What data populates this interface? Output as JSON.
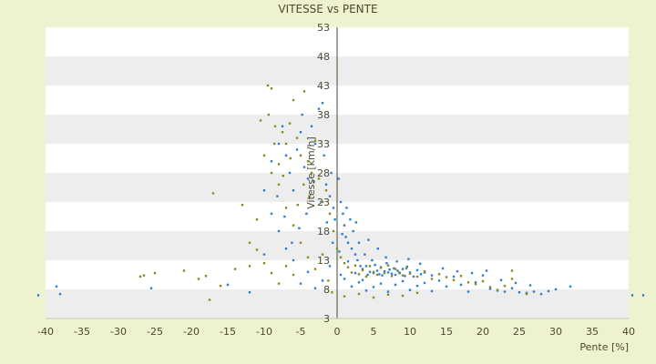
{
  "chart_data": {
    "type": "scatter",
    "title": "VITESSE vs PENTE",
    "xlabel": "Pente [%]",
    "ylabel": "Vitesse [km/h]",
    "xlim": [
      -40,
      40
    ],
    "ylim": [
      3,
      53
    ],
    "x_ticks": [
      -40,
      -35,
      -30,
      -25,
      -20,
      -15,
      -10,
      -5,
      0,
      5,
      10,
      15,
      20,
      25,
      30,
      35,
      40
    ],
    "y_ticks": [
      3,
      8,
      13,
      18,
      23,
      28,
      33,
      38,
      43,
      48,
      53
    ],
    "grid": "horizontal bands",
    "colors": {
      "background": "#eef2cf",
      "band_light": "#ffffff",
      "band_dark": "#ededed",
      "axis": "#4a4a30",
      "series_blue": "#2f7fd0",
      "series_olive": "#8a8a1e"
    },
    "series": [
      {
        "color": "#2f7fd0",
        "points": [
          [
            -41,
            7
          ],
          [
            -38.5,
            8.5
          ],
          [
            -38,
            7.2
          ],
          [
            -25.5,
            8.2
          ],
          [
            -15,
            8.8
          ],
          [
            -12,
            7.5
          ],
          [
            -10,
            14
          ],
          [
            -9,
            30
          ],
          [
            -8,
            33
          ],
          [
            -7.5,
            36
          ],
          [
            -7,
            31
          ],
          [
            -6.5,
            28
          ],
          [
            -6,
            25
          ],
          [
            -5.5,
            32
          ],
          [
            -5,
            35
          ],
          [
            -4.8,
            38
          ],
          [
            -4.5,
            29
          ],
          [
            -4,
            27
          ],
          [
            -3.5,
            36
          ],
          [
            -3,
            33
          ],
          [
            -2.5,
            39
          ],
          [
            -2,
            40
          ],
          [
            -1.8,
            31
          ],
          [
            -1.5,
            26
          ],
          [
            -1,
            24
          ],
          [
            -0.8,
            28
          ],
          [
            -0.5,
            22
          ],
          [
            -0.3,
            20
          ],
          [
            0.2,
            27
          ],
          [
            0.5,
            23
          ],
          [
            0.8,
            21
          ],
          [
            1,
            19
          ],
          [
            1.2,
            17
          ],
          [
            1.5,
            16
          ],
          [
            1.8,
            20
          ],
          [
            2,
            15
          ],
          [
            2.2,
            18
          ],
          [
            2.5,
            14
          ],
          [
            2.8,
            13
          ],
          [
            3,
            16
          ],
          [
            3.2,
            12
          ],
          [
            3.5,
            11.5
          ],
          [
            3.8,
            14
          ],
          [
            4,
            12
          ],
          [
            4.2,
            10.5
          ],
          [
            4.5,
            11
          ],
          [
            4.8,
            13
          ],
          [
            5,
            10.8
          ],
          [
            5.2,
            12.2
          ],
          [
            5.5,
            11.2
          ],
          [
            5.8,
            10.6
          ],
          [
            6,
            11.8
          ],
          [
            6.2,
            10.4
          ],
          [
            6.5,
            11.1
          ],
          [
            6.8,
            12.5
          ],
          [
            7,
            10.9
          ],
          [
            7.2,
            11.4
          ],
          [
            7.5,
            10.7
          ],
          [
            7.8,
            11.6
          ],
          [
            8,
            10.5
          ],
          [
            8.3,
            11.2
          ],
          [
            8.6,
            10.8
          ],
          [
            9,
            11.5
          ],
          [
            9.3,
            10.3
          ],
          [
            9.6,
            11.9
          ],
          [
            10,
            10.9
          ],
          [
            10.5,
            10.2
          ],
          [
            11,
            11.3
          ],
          [
            11.5,
            10.6
          ],
          [
            12,
            10.9
          ],
          [
            13,
            10.4
          ],
          [
            14,
            9.5
          ],
          [
            15,
            8.5
          ],
          [
            16,
            10.2
          ],
          [
            17,
            8.8
          ],
          [
            18,
            7.6
          ],
          [
            19,
            9.2
          ],
          [
            20,
            10.4
          ],
          [
            21,
            8.1
          ],
          [
            22,
            7.8
          ],
          [
            23,
            7.6
          ],
          [
            24,
            8.2
          ],
          [
            25,
            7.5
          ],
          [
            26,
            7.4
          ],
          [
            27,
            7.6
          ],
          [
            28,
            7.2
          ],
          [
            29,
            7.7
          ],
          [
            30,
            8.0
          ],
          [
            32,
            8.5
          ],
          [
            2,
            8.5
          ],
          [
            3,
            9.2
          ],
          [
            4,
            7.8
          ],
          [
            5,
            8.4
          ],
          [
            6,
            9.0
          ],
          [
            7,
            7.6
          ],
          [
            8,
            8.8
          ],
          [
            9,
            9.4
          ],
          [
            10,
            7.9
          ],
          [
            11,
            8.6
          ],
          [
            12,
            9.1
          ],
          [
            13,
            7.7
          ],
          [
            1,
            9.8
          ],
          [
            0.5,
            10.5
          ],
          [
            1.5,
            12.8
          ],
          [
            2.5,
            10.8
          ],
          [
            3.5,
            9.6
          ],
          [
            -1,
            12
          ],
          [
            -2,
            9.5
          ],
          [
            -3,
            8.2
          ],
          [
            -4,
            11
          ],
          [
            -5,
            9
          ],
          [
            -6,
            13
          ],
          [
            -7,
            15
          ],
          [
            -8,
            18
          ],
          [
            -9,
            21
          ],
          [
            -10,
            25
          ],
          [
            40.5,
            7
          ],
          [
            42,
            7
          ],
          [
            0.3,
            14.5
          ],
          [
            0.7,
            17.5
          ],
          [
            1.3,
            22
          ],
          [
            2.6,
            19.5
          ],
          [
            4.3,
            16.5
          ],
          [
            5.6,
            15
          ],
          [
            6.7,
            13.5
          ],
          [
            8.2,
            12.8
          ],
          [
            9.8,
            13.2
          ],
          [
            11.4,
            12.4
          ],
          [
            14.5,
            11.6
          ],
          [
            16.5,
            11.1
          ],
          [
            18.5,
            10.8
          ],
          [
            20.5,
            11.2
          ],
          [
            22.5,
            9.6
          ],
          [
            24.5,
            9.1
          ],
          [
            26.5,
            8.7
          ],
          [
            -0.6,
            16
          ],
          [
            -1.4,
            19.5
          ],
          [
            -2.2,
            23
          ],
          [
            -3.2,
            26.5
          ],
          [
            -4.2,
            21
          ],
          [
            -5.2,
            18.5
          ],
          [
            -6.2,
            16
          ],
          [
            -7.2,
            20.5
          ],
          [
            -8.2,
            24
          ]
        ]
      },
      {
        "color": "#8a8a1e",
        "points": [
          [
            -27,
            10.2
          ],
          [
            -26.5,
            10.4
          ],
          [
            -25,
            10.8
          ],
          [
            -21,
            11.2
          ],
          [
            -19,
            9.8
          ],
          [
            -18,
            10.3
          ],
          [
            -17.5,
            6.2
          ],
          [
            -17,
            24.5
          ],
          [
            -16,
            8.6
          ],
          [
            -14,
            11.5
          ],
          [
            -13,
            22.5
          ],
          [
            -12,
            12
          ],
          [
            -11,
            14.8
          ],
          [
            -10.5,
            37
          ],
          [
            -9.5,
            43
          ],
          [
            -9,
            42.5
          ],
          [
            -8.5,
            36
          ],
          [
            -8,
            29.5
          ],
          [
            -7.5,
            35
          ],
          [
            -7,
            33
          ],
          [
            -6.5,
            36.5
          ],
          [
            -6,
            40.5
          ],
          [
            -5.5,
            34
          ],
          [
            -5,
            31
          ],
          [
            -4.5,
            42
          ],
          [
            -4,
            30
          ],
          [
            -3.5,
            28
          ],
          [
            -3,
            33.5
          ],
          [
            -2.5,
            27
          ],
          [
            -2,
            23
          ],
          [
            -1.5,
            25
          ],
          [
            -1,
            21
          ],
          [
            -0.5,
            18
          ],
          [
            0,
            15
          ],
          [
            0.5,
            13.5
          ],
          [
            1,
            12.5
          ],
          [
            1.5,
            11.8
          ],
          [
            2,
            10.9
          ],
          [
            2.5,
            12.1
          ],
          [
            3,
            10.6
          ],
          [
            3.5,
            11.3
          ],
          [
            4,
            10.2
          ],
          [
            4.5,
            12
          ],
          [
            5,
            11
          ],
          [
            5.5,
            10.5
          ],
          [
            6,
            11.7
          ],
          [
            6.5,
            10.8
          ],
          [
            7,
            12.1
          ],
          [
            7.5,
            10.3
          ],
          [
            8,
            11.5
          ],
          [
            8.5,
            10.9
          ],
          [
            9,
            10.4
          ],
          [
            9.5,
            11.6
          ],
          [
            10,
            10.7
          ],
          [
            11,
            10.2
          ],
          [
            12,
            11.1
          ],
          [
            13,
            9.8
          ],
          [
            14,
            10.6
          ],
          [
            15,
            10.1
          ],
          [
            16,
            9.6
          ],
          [
            17,
            10.3
          ],
          [
            18,
            9.2
          ],
          [
            19,
            8.9
          ],
          [
            20,
            9.4
          ],
          [
            21,
            8.4
          ],
          [
            22,
            7.9
          ],
          [
            23,
            8.6
          ],
          [
            24,
            9.8
          ],
          [
            24,
            11.2
          ],
          [
            26,
            7.2
          ],
          [
            -3,
            11.5
          ],
          [
            -4,
            13.5
          ],
          [
            -5,
            16
          ],
          [
            -6,
            19
          ],
          [
            -7,
            22
          ],
          [
            -8,
            26
          ],
          [
            -9,
            28
          ],
          [
            -10,
            31
          ],
          [
            -11,
            20
          ],
          [
            -12,
            16
          ],
          [
            -2,
            14
          ],
          [
            -1.2,
            9.5
          ],
          [
            -0.7,
            7.5
          ],
          [
            1,
            6.8
          ],
          [
            3,
            7.2
          ],
          [
            5,
            6.6
          ],
          [
            7,
            7.1
          ],
          [
            9,
            6.9
          ],
          [
            11,
            7.4
          ],
          [
            -6,
            10.5
          ],
          [
            -7,
            12
          ],
          [
            -8,
            9
          ],
          [
            -9,
            10.8
          ],
          [
            -10,
            12.5
          ],
          [
            -3.8,
            24
          ],
          [
            -4.6,
            26
          ],
          [
            -5.4,
            22.5
          ],
          [
            -6.4,
            30.5
          ],
          [
            -7.4,
            27.5
          ],
          [
            -8.6,
            33
          ],
          [
            -9.4,
            38
          ]
        ]
      }
    ]
  }
}
